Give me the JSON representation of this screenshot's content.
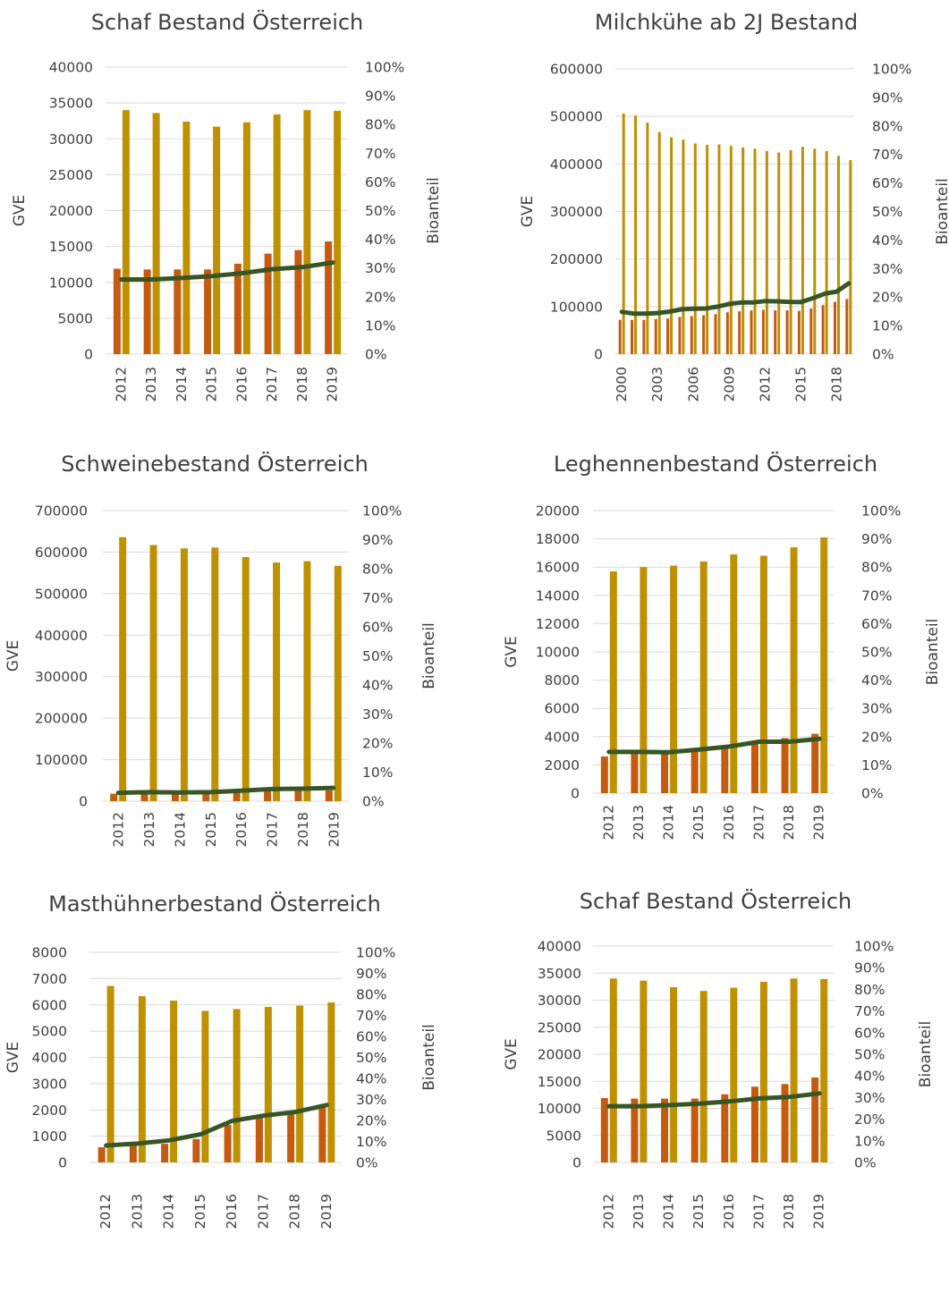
{
  "colors": {
    "bio": "#c55a11",
    "total": "#bf9000",
    "share": "#375623",
    "grid": "#d9d9d9",
    "text": "#404040"
  },
  "chart_data": [
    {
      "id": "c1",
      "type": "bar",
      "title": "Schaf Bestand Österreich",
      "xlabel": "",
      "ylabel": "GVE",
      "y2label": "Bioanteil",
      "categories": [
        "2012",
        "2013",
        "2014",
        "2015",
        "2016",
        "2017",
        "2018",
        "2019"
      ],
      "ylim": [
        0,
        40000
      ],
      "yticks": [
        0,
        5000,
        10000,
        15000,
        20000,
        25000,
        30000,
        35000,
        40000
      ],
      "y2lim": [
        0,
        100
      ],
      "y2ticks": [
        "0%",
        "10%",
        "20%",
        "30%",
        "40%",
        "50%",
        "60%",
        "70%",
        "80%",
        "90%",
        "100%"
      ],
      "series": [
        {
          "values": [
            11900,
            11800,
            11800,
            11800,
            12600,
            14000,
            14500,
            15700
          ]
        },
        {
          "values": [
            34000,
            33600,
            32400,
            31700,
            32300,
            33400,
            34000,
            33900
          ]
        },
        {
          "type": "line",
          "axis": "secondary",
          "values": [
            26,
            26,
            26.5,
            27.2,
            28.2,
            29.6,
            30.3,
            31.9
          ]
        }
      ]
    },
    {
      "id": "c2",
      "type": "bar",
      "title": "Milchkühe ab 2J Bestand",
      "xlabel": "",
      "ylabel": "GVE",
      "y2label": "Bioanteil",
      "categories": [
        "2000",
        "2001",
        "2002",
        "2003",
        "2004",
        "2005",
        "2006",
        "2007",
        "2008",
        "2009",
        "2010",
        "2011",
        "2012",
        "2013",
        "2014",
        "2015",
        "2016",
        "2017",
        "2018",
        "2019"
      ],
      "tick_labels": [
        "2000",
        "",
        "",
        "2003",
        "",
        "",
        "2006",
        "",
        "",
        "2009",
        "",
        "",
        "2012",
        "",
        "",
        "2015",
        "",
        "",
        "2018",
        ""
      ],
      "ylim": [
        0,
        600000
      ],
      "yticks": [
        0,
        100000,
        200000,
        300000,
        400000,
        500000,
        600000
      ],
      "y2lim": [
        0,
        100
      ],
      "y2ticks": [
        "0%",
        "10%",
        "20%",
        "30%",
        "40%",
        "50%",
        "60%",
        "70%",
        "80%",
        "90%",
        "100%"
      ],
      "series": [
        {
          "values": [
            72000,
            72000,
            72000,
            74000,
            75000,
            78000,
            80000,
            82000,
            84000,
            88000,
            90000,
            92000,
            93000,
            92000,
            92000,
            91000,
            96000,
            103000,
            110000,
            116000
          ]
        },
        {
          "values": [
            506000,
            502000,
            487000,
            467000,
            456000,
            451000,
            443000,
            440000,
            441000,
            438000,
            435000,
            432000,
            427000,
            424000,
            429000,
            436000,
            432000,
            427000,
            417000,
            408000
          ]
        },
        {
          "type": "line",
          "axis": "secondary",
          "values": [
            14.8,
            14.2,
            14.2,
            14.4,
            14.9,
            15.7,
            15.9,
            16.0,
            16.6,
            17.6,
            18.1,
            18.1,
            18.6,
            18.5,
            18.3,
            18.2,
            19.6,
            21.2,
            21.9,
            24.8
          ]
        }
      ]
    },
    {
      "id": "c3",
      "type": "bar",
      "title": "Schweinebestand Österreich",
      "xlabel": "",
      "ylabel": "GVE",
      "y2label": "Bioanteil",
      "categories": [
        "2012",
        "2013",
        "2014",
        "2015",
        "2016",
        "2017",
        "2018",
        "2019"
      ],
      "ylim": [
        0,
        700000
      ],
      "yticks": [
        0,
        100000,
        200000,
        300000,
        400000,
        500000,
        600000,
        700000
      ],
      "y2lim": [
        0,
        100
      ],
      "y2ticks": [
        "0%",
        "10%",
        "20%",
        "30%",
        "40%",
        "50%",
        "60%",
        "70%",
        "80%",
        "90%",
        "100%"
      ],
      "series": [
        {
          "values": [
            18000,
            19000,
            18000,
            19000,
            21000,
            24000,
            25000,
            26000
          ]
        },
        {
          "values": [
            636000,
            617000,
            609000,
            611000,
            588000,
            575000,
            578000,
            567000
          ]
        },
        {
          "type": "line",
          "axis": "secondary",
          "values": [
            2.9,
            3.1,
            3.0,
            3.1,
            3.6,
            4.2,
            4.3,
            4.6
          ]
        }
      ]
    },
    {
      "id": "c4",
      "type": "bar",
      "title": "Leghennenbestand Österreich",
      "xlabel": "",
      "ylabel": "GVE",
      "y2label": "Bioanteil",
      "categories": [
        "2012",
        "2013",
        "2014",
        "2015",
        "2016",
        "2017",
        "2018",
        "2019"
      ],
      "ylim": [
        0,
        20000
      ],
      "yticks": [
        0,
        2000,
        4000,
        6000,
        8000,
        10000,
        12000,
        14000,
        16000,
        18000,
        20000
      ],
      "y2lim": [
        0,
        100
      ],
      "y2ticks": [
        "0%",
        "10%",
        "20%",
        "30%",
        "40%",
        "50%",
        "60%",
        "70%",
        "80%",
        "90%",
        "100%"
      ],
      "series": [
        {
          "values": [
            2600,
            2800,
            2800,
            3000,
            3300,
            3700,
            3900,
            4200
          ]
        },
        {
          "values": [
            15700,
            16000,
            16100,
            16400,
            16900,
            16800,
            17400,
            18100
          ]
        },
        {
          "type": "line",
          "axis": "secondary",
          "values": [
            14.6,
            14.6,
            14.5,
            15.4,
            16.5,
            18.2,
            18.2,
            19.2
          ]
        }
      ]
    },
    {
      "id": "c5",
      "type": "bar",
      "title": "Masthühnerbestand Österreich",
      "xlabel": "",
      "ylabel": "GVE",
      "y2label": "Bioanteil",
      "categories": [
        "2012",
        "2013",
        "2014",
        "2015",
        "2016",
        "2017",
        "2018",
        "2019"
      ],
      "ylim": [
        0,
        8000
      ],
      "yticks": [
        0,
        1000,
        2000,
        3000,
        4000,
        5000,
        6000,
        7000,
        8000
      ],
      "y2lim": [
        0,
        100
      ],
      "y2ticks": [
        "0%",
        "10%",
        "20%",
        "30%",
        "40%",
        "50%",
        "60%",
        "70%",
        "80%",
        "90%",
        "100%"
      ],
      "series": [
        {
          "values": [
            580,
            730,
            710,
            890,
            1430,
            1740,
            1900,
            2200
          ]
        },
        {
          "values": [
            6720,
            6330,
            6160,
            5770,
            5840,
            5920,
            5970,
            6090
          ]
        },
        {
          "type": "line",
          "axis": "secondary",
          "values": [
            8.1,
            9.0,
            10.5,
            13.4,
            19.8,
            22.3,
            24.0,
            27.3
          ]
        }
      ]
    },
    {
      "id": "c6",
      "type": "bar",
      "title": "Schaf Bestand Österreich",
      "xlabel": "",
      "ylabel": "GVE",
      "y2label": "Bioanteil",
      "categories": [
        "2012",
        "2013",
        "2014",
        "2015",
        "2016",
        "2017",
        "2018",
        "2019"
      ],
      "ylim": [
        0,
        40000
      ],
      "yticks": [
        0,
        5000,
        10000,
        15000,
        20000,
        25000,
        30000,
        35000,
        40000
      ],
      "y2lim": [
        0,
        100
      ],
      "y2ticks": [
        "0%",
        "10%",
        "20%",
        "30%",
        "40%",
        "50%",
        "60%",
        "70%",
        "80%",
        "90%",
        "100%"
      ],
      "series": [
        {
          "values": [
            11900,
            11800,
            11800,
            11800,
            12600,
            14000,
            14500,
            15700
          ]
        },
        {
          "values": [
            34000,
            33600,
            32400,
            31700,
            32300,
            33400,
            34000,
            33900
          ]
        },
        {
          "type": "line",
          "axis": "secondary",
          "values": [
            26,
            26,
            26.5,
            27.2,
            28.2,
            29.6,
            30.3,
            31.9
          ]
        }
      ]
    }
  ]
}
